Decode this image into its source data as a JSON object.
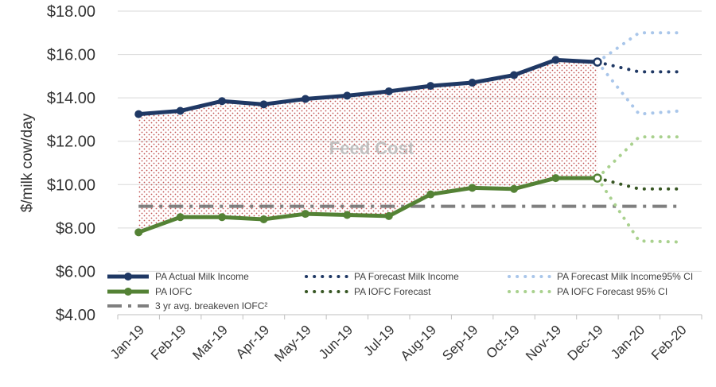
{
  "chart_data": {
    "type": "line",
    "ylabel": "$/milk cow/day",
    "xlabel": "",
    "ylim": [
      4,
      18
    ],
    "yticks": [
      "$4.00",
      "$6.00",
      "$8.00",
      "$10.00",
      "$12.00",
      "$14.00",
      "$16.00",
      "$18.00"
    ],
    "ytick_values": [
      4,
      6,
      8,
      10,
      12,
      14,
      16,
      18
    ],
    "categories": [
      "Jan-19",
      "Feb-19",
      "Mar-19",
      "Apr-19",
      "May-19",
      "Jun-19",
      "Jul-19",
      "Aug-19",
      "Sep-19",
      "Oct-19",
      "Nov-19",
      "Dec-19",
      "Jan-20",
      "Feb-20"
    ],
    "annotation": "Feed Cost",
    "grid": "horizontal",
    "legend_position": "bottom-inside",
    "series": [
      {
        "name": "PA Actual Milk Income",
        "style": "solid-markers",
        "color": "#1f3864",
        "values": [
          13.25,
          13.4,
          13.85,
          13.7,
          13.95,
          14.1,
          14.3,
          14.55,
          14.7,
          15.05,
          15.75,
          15.65,
          null,
          null
        ]
      },
      {
        "name": "PA Forecast Milk Income",
        "style": "dotted",
        "color": "#1f3864",
        "values": [
          null,
          null,
          null,
          null,
          null,
          null,
          null,
          null,
          null,
          null,
          null,
          15.65,
          15.2,
          15.2
        ]
      },
      {
        "name": "PA Forecast Milk Income95% CI",
        "style": "dotted",
        "color": "#a9c6ea",
        "values_upper": [
          null,
          null,
          null,
          null,
          null,
          null,
          null,
          null,
          null,
          null,
          null,
          15.65,
          17.0,
          17.0
        ],
        "values_lower": [
          null,
          null,
          null,
          null,
          null,
          null,
          null,
          null,
          null,
          null,
          null,
          15.65,
          13.25,
          13.4
        ]
      },
      {
        "name": "PA IOFC",
        "style": "solid-markers",
        "color": "#548235",
        "values": [
          7.8,
          8.5,
          8.5,
          8.4,
          8.65,
          8.6,
          8.55,
          9.55,
          9.85,
          9.8,
          10.3,
          10.3,
          null,
          null
        ]
      },
      {
        "name": "PA IOFC Forecast",
        "style": "dotted",
        "color": "#375623",
        "values": [
          null,
          null,
          null,
          null,
          null,
          null,
          null,
          null,
          null,
          null,
          null,
          10.3,
          9.8,
          9.8
        ]
      },
      {
        "name": "PA IOFC Forecast 95% CI",
        "style": "dotted",
        "color": "#a9d18e",
        "values_upper": [
          null,
          null,
          null,
          null,
          null,
          null,
          null,
          null,
          null,
          null,
          null,
          10.3,
          12.2,
          12.2
        ],
        "values_lower": [
          null,
          null,
          null,
          null,
          null,
          null,
          null,
          null,
          null,
          null,
          null,
          10.3,
          7.4,
          7.35
        ]
      },
      {
        "name": "3 yr avg. breakeven IOFC²",
        "style": "dash-dot",
        "color": "#7f7f7f",
        "values": [
          9.0,
          9.0,
          9.0,
          9.0,
          9.0,
          9.0,
          9.0,
          9.0,
          9.0,
          9.0,
          9.0,
          9.0,
          9.0,
          9.0
        ]
      }
    ]
  }
}
